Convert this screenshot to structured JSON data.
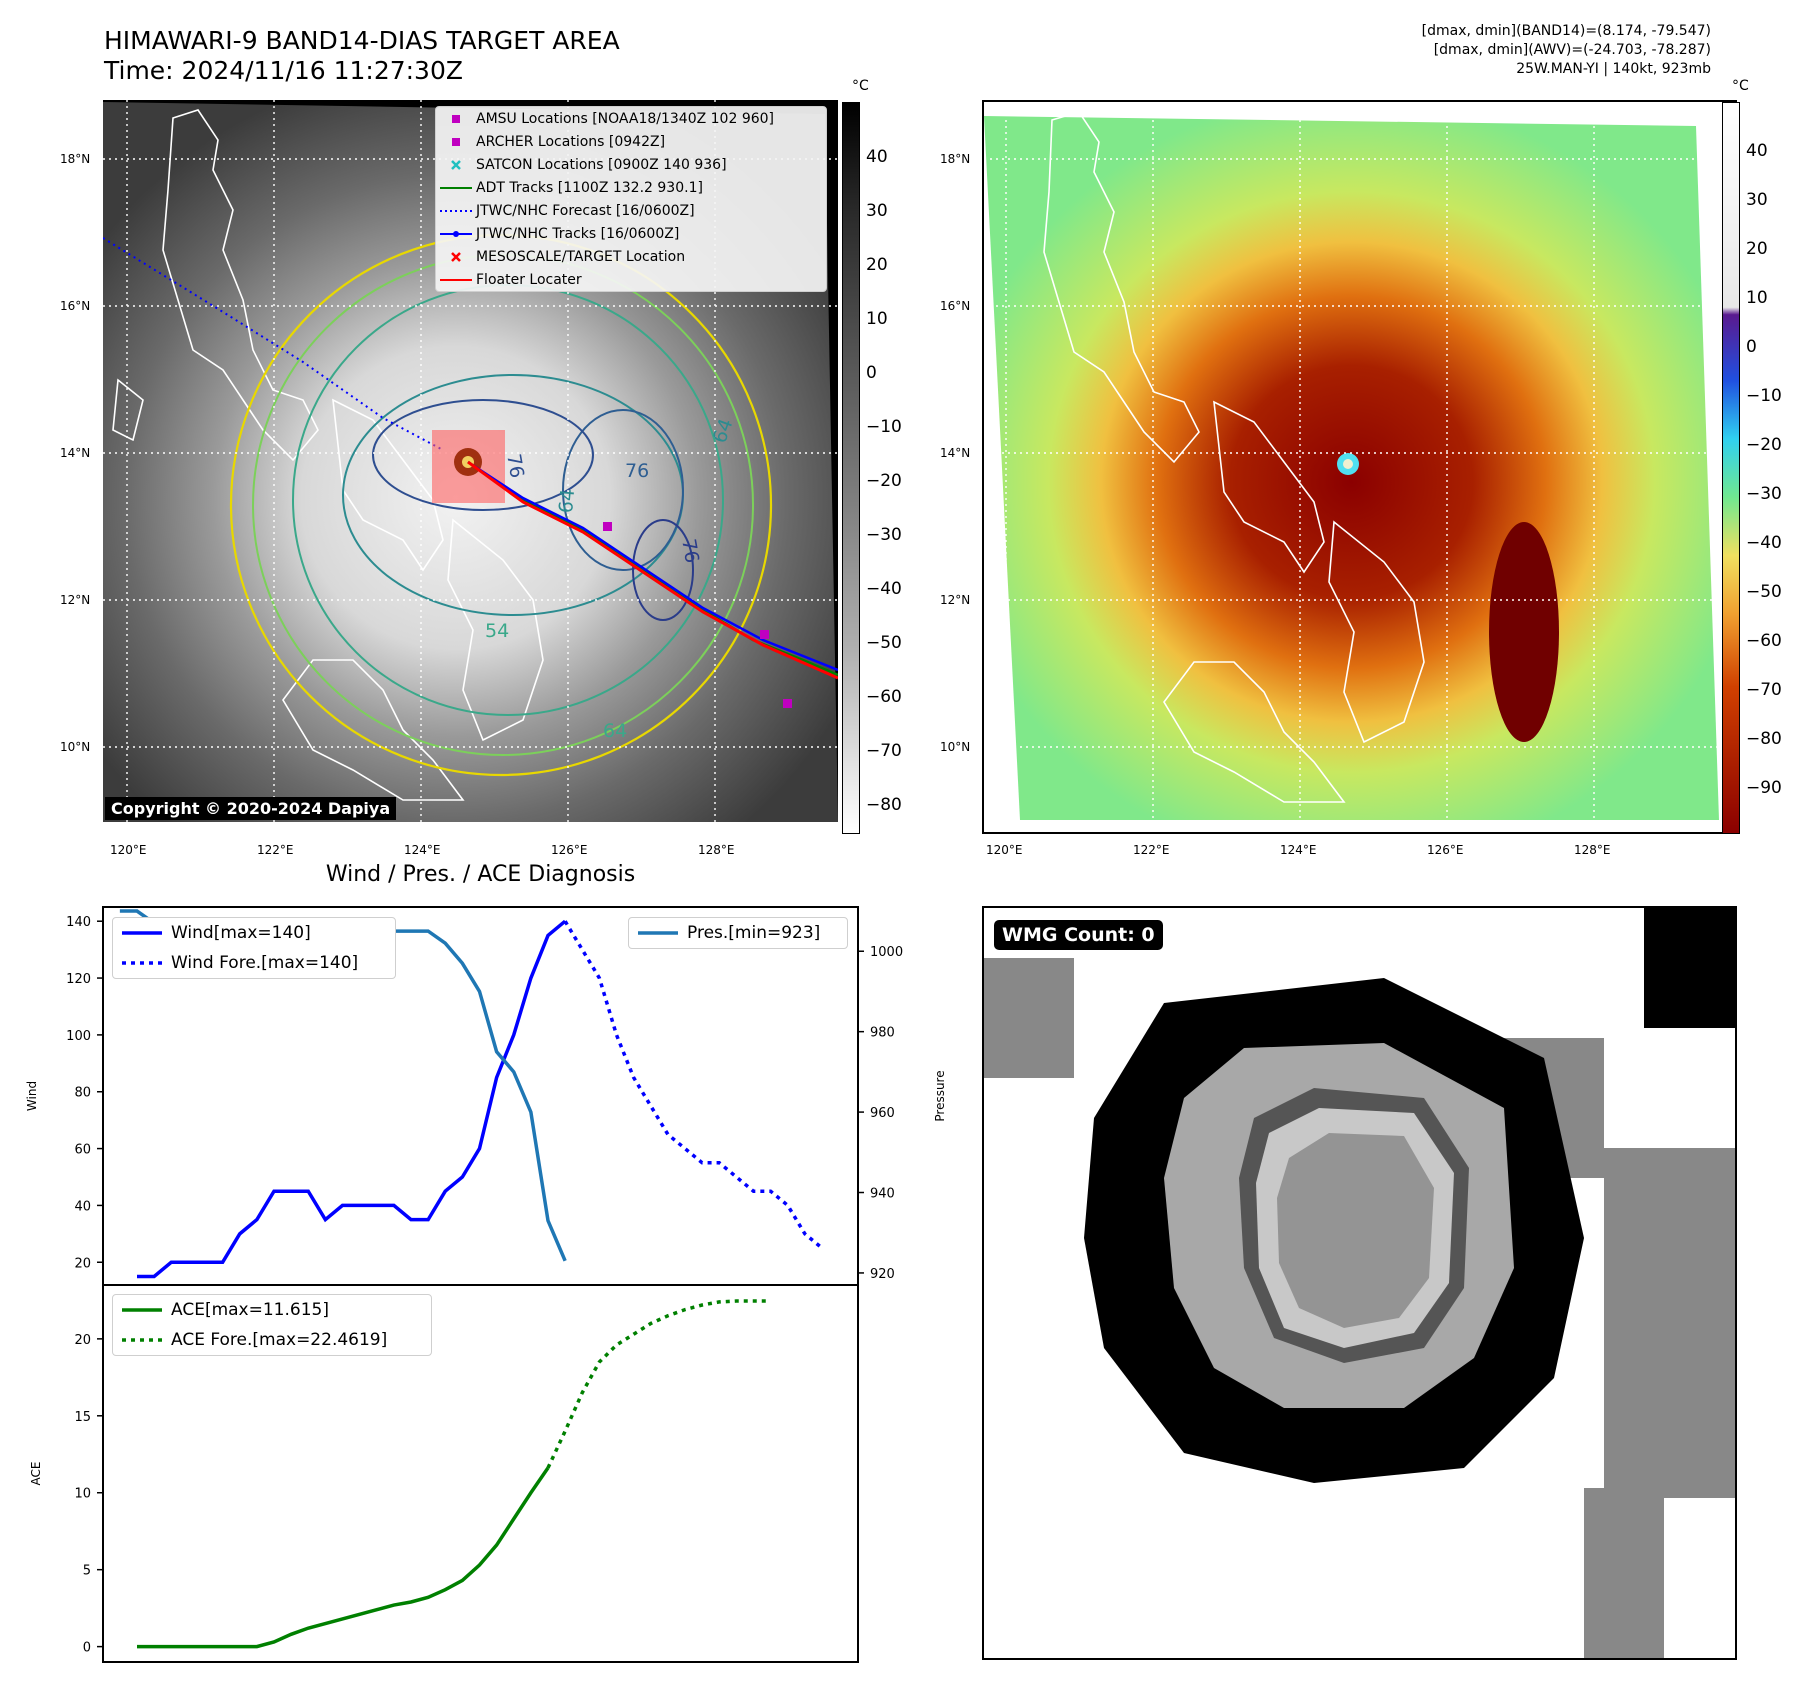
{
  "header": {
    "title_line1": "HIMAWARI-9 BAND14-DIAS TARGET AREA",
    "title_line2": "Time: 2024/11/16 11:27:30Z",
    "info_line1": "[dmax, dmin](BAND14)=(8.174, -79.547)",
    "info_line2": "[dmax, dmin](AWV)=(-24.703, -78.287)",
    "info_line3": "25W.MAN-YI | 140kt, 923mb"
  },
  "map_axes": {
    "lat_labels": [
      "18°N",
      "16°N",
      "14°N",
      "12°N",
      "10°N"
    ],
    "lon_labels": [
      "120°E",
      "122°E",
      "124°E",
      "126°E",
      "128°E"
    ]
  },
  "colorbar1": {
    "unit": "°C",
    "ticks": [
      "40",
      "30",
      "20",
      "10",
      "0",
      "−10",
      "−20",
      "−30",
      "−40",
      "−50",
      "−60",
      "−70",
      "−80"
    ]
  },
  "colorbar2": {
    "unit": "°C",
    "ticks": [
      "40",
      "30",
      "20",
      "10",
      "0",
      "−10",
      "−20",
      "−30",
      "−40",
      "−50",
      "−60",
      "−70",
      "−80",
      "−90"
    ]
  },
  "map_legend": [
    {
      "label": "AMSU Locations [NOAA18/1340Z 102 960]",
      "marker": "square",
      "color": "#c000c0"
    },
    {
      "label": "ARCHER Locations [0942Z]",
      "marker": "square",
      "color": "#c000c0"
    },
    {
      "label": "SATCON Locations [0900Z 140 936]",
      "marker": "x",
      "color": "#20c0c0"
    },
    {
      "label": "ADT Tracks [1100Z 132.2 930.1]",
      "marker": "line",
      "color": "#008000"
    },
    {
      "label": "JTWC/NHC Forecast [16/0600Z]",
      "marker": "dotted",
      "color": "#0000ff"
    },
    {
      "label": "JTWC/NHC Tracks [16/0600Z]",
      "marker": "line-dot",
      "color": "#0000ff"
    },
    {
      "label": "MESOSCALE/TARGET Location",
      "marker": "x",
      "color": "#ff0000"
    },
    {
      "label": "Floater Locater",
      "marker": "line",
      "color": "#ff0000"
    }
  ],
  "copyright": "Copyright © 2020-2024 Dapiya",
  "contour_labels": [
    "76",
    "64",
    "76",
    "64",
    "54",
    "76",
    "64"
  ],
  "wmg_count": "WMG Count: 0",
  "diag_title": "Wind / Pres. / ACE Diagnosis",
  "chart_data": [
    {
      "type": "line",
      "title": "Wind / Pres. / ACE Diagnosis",
      "ylabel": "Wind",
      "y2label": "Pressure",
      "ylim": [
        12,
        145
      ],
      "y2lim": [
        917,
        1011
      ],
      "yticks": [
        "140",
        "120",
        "100",
        "80",
        "60",
        "40",
        "20"
      ],
      "y2ticks": [
        "1000",
        "980",
        "960",
        "940",
        "920"
      ],
      "series": [
        {
          "name": "Wind[max=140]",
          "style": "solid",
          "color": "#0000ff",
          "axis": "left",
          "values": [
            15,
            15,
            20,
            20,
            20,
            20,
            30,
            35,
            45,
            45,
            45,
            35,
            40,
            40,
            40,
            40,
            35,
            35,
            45,
            50,
            60,
            85,
            100,
            120,
            135,
            140
          ]
        },
        {
          "name": "Wind Fore.[max=140]",
          "style": "dotted",
          "color": "#0000ff",
          "axis": "left",
          "values": [
            140,
            130,
            120,
            100,
            85,
            75,
            65,
            60,
            55,
            55,
            50,
            45,
            45,
            40,
            30,
            25
          ]
        },
        {
          "name": "Pres.[min=923]",
          "style": "solid",
          "color": "#1f77b4",
          "axis": "right",
          "values": [
            1010,
            1010,
            1007,
            1007,
            1007,
            1004,
            1004,
            999,
            999,
            1000,
            1002,
            1002,
            997,
            999,
            998,
            1003,
            1005,
            1005,
            1005,
            1002,
            997,
            990,
            975,
            970,
            960,
            933,
            923
          ]
        }
      ]
    },
    {
      "type": "line",
      "ylabel": "ACE",
      "ylim": [
        -1,
        23.5
      ],
      "yticks": [
        "20",
        "15",
        "10",
        "5",
        "0"
      ],
      "series": [
        {
          "name": "ACE[max=11.615]",
          "style": "solid",
          "color": "#008000",
          "values": [
            0,
            0,
            0,
            0,
            0,
            0,
            0,
            0,
            0.3,
            0.8,
            1.2,
            1.5,
            1.8,
            2.1,
            2.4,
            2.7,
            2.9,
            3.2,
            3.7,
            4.3,
            5.3,
            6.6,
            8.3,
            10.0,
            11.615
          ]
        },
        {
          "name": "ACE Fore.[max=22.4619]",
          "style": "dotted",
          "color": "#008000",
          "values": [
            11.615,
            14.0,
            16.5,
            18.5,
            19.6,
            20.3,
            21.0,
            21.5,
            21.9,
            22.2,
            22.4,
            22.46,
            22.46,
            22.46
          ]
        }
      ]
    }
  ]
}
